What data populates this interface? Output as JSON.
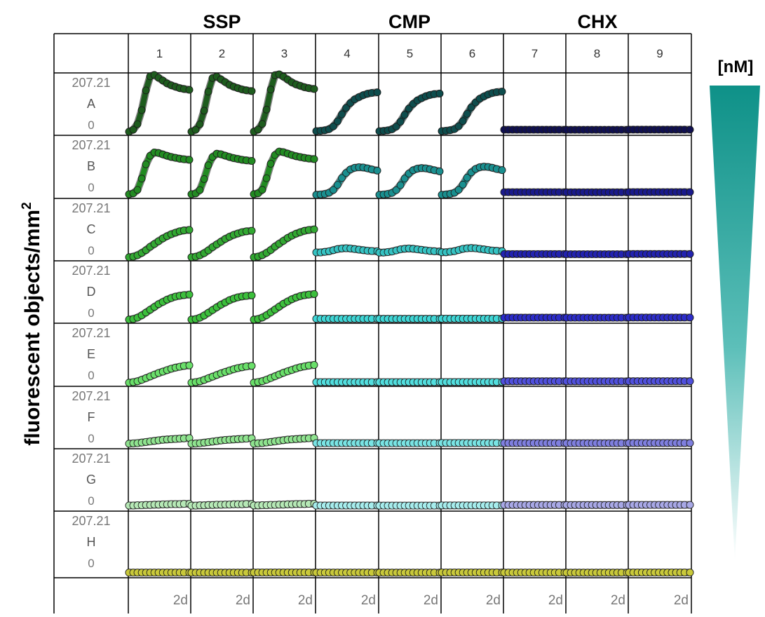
{
  "chart_data": {
    "type": "line",
    "title": "",
    "ylabel": "fluorescent objects/mm",
    "ylabel_superscript": "2",
    "groups": [
      {
        "label": "SSP",
        "columns": [
          1,
          2,
          3
        ]
      },
      {
        "label": "CMP",
        "columns": [
          4,
          5,
          6
        ]
      },
      {
        "label": "CHX",
        "columns": [
          7,
          8,
          9
        ]
      }
    ],
    "columns": [
      "1",
      "2",
      "3",
      "4",
      "5",
      "6",
      "7",
      "8",
      "9"
    ],
    "rows": [
      "A",
      "B",
      "C",
      "D",
      "E",
      "F",
      "G",
      "H"
    ],
    "y_max_label": "207.21",
    "y_min_label": "0",
    "ylim": [
      0,
      207.21
    ],
    "x_end_label": "2d",
    "concentration_label": "[nM]",
    "concentration_gradient": {
      "top_color": "#0e9188",
      "bottom_color": "#ffffff"
    },
    "grid": true,
    "row_colors": {
      "SSP": [
        "#1e5c1e",
        "#228b22",
        "#32a832",
        "#3cbf3c",
        "#6adf6a",
        "#8fe38f",
        "#b6e9b6",
        "#c9c93a"
      ],
      "CMP": [
        "#0e4d4d",
        "#1a8f8f",
        "#35c3c3",
        "#3fd6d6",
        "#52dede",
        "#79e4e4",
        "#a6eded",
        "#c9c93a"
      ],
      "CHX": [
        "#101050",
        "#1a1a8c",
        "#2222b0",
        "#2c2cc8",
        "#5050dc",
        "#7f7fdf",
        "#a8a8e6",
        "#c9c93a"
      ]
    },
    "x_time_fraction": [
      0,
      0.07,
      0.14,
      0.21,
      0.28,
      0.35,
      0.42,
      0.49,
      0.56,
      0.63,
      0.7,
      0.77,
      0.84,
      0.91,
      1.0
    ],
    "series": [
      {
        "row": "A",
        "group": "SSP",
        "values": [
          3,
          10,
          30,
          80,
          150,
          200,
          205,
          195,
          185,
          175,
          168,
          163,
          158,
          155,
          152
        ]
      },
      {
        "row": "A",
        "group": "CMP",
        "values": [
          5,
          6,
          8,
          12,
          22,
          40,
          65,
          88,
          105,
          118,
          126,
          133,
          138,
          141,
          143
        ]
      },
      {
        "row": "A",
        "group": "CHX",
        "values": [
          10,
          10,
          10,
          10,
          10,
          10,
          10,
          10,
          10,
          10,
          10,
          10,
          10,
          10,
          10
        ]
      },
      {
        "row": "B",
        "group": "SSP",
        "values": [
          5,
          8,
          20,
          60,
          110,
          140,
          152,
          150,
          145,
          140,
          136,
          133,
          130,
          128,
          126
        ]
      },
      {
        "row": "B",
        "group": "CMP",
        "values": [
          3,
          4,
          6,
          10,
          20,
          38,
          62,
          80,
          92,
          98,
          100,
          99,
          96,
          92,
          88
        ]
      },
      {
        "row": "B",
        "group": "CHX",
        "values": [
          12,
          12,
          12,
          12,
          12,
          12,
          12,
          12,
          12,
          12,
          12,
          12,
          12,
          12,
          12
        ]
      },
      {
        "row": "C",
        "group": "SSP",
        "values": [
          3,
          5,
          10,
          18,
          28,
          40,
          50,
          60,
          70,
          78,
          85,
          90,
          95,
          98,
          100
        ]
      },
      {
        "row": "C",
        "group": "CMP",
        "values": [
          20,
          20,
          22,
          24,
          28,
          32,
          34,
          35,
          34,
          32,
          30,
          28,
          26,
          25,
          24
        ]
      },
      {
        "row": "C",
        "group": "CHX",
        "values": [
          14,
          14,
          14,
          14,
          14,
          14,
          14,
          14,
          14,
          14,
          14,
          14,
          14,
          14,
          14
        ]
      },
      {
        "row": "D",
        "group": "SSP",
        "values": [
          3,
          5,
          10,
          18,
          28,
          38,
          48,
          58,
          66,
          74,
          80,
          85,
          88,
          90,
          92
        ]
      },
      {
        "row": "D",
        "group": "CMP",
        "values": [
          6,
          6,
          6,
          6,
          6,
          6,
          6,
          6,
          6,
          6,
          6,
          6,
          6,
          6,
          6
        ]
      },
      {
        "row": "D",
        "group": "CHX",
        "values": [
          10,
          10,
          10,
          10,
          10,
          10,
          10,
          10,
          10,
          10,
          10,
          10,
          10,
          10,
          10
        ]
      },
      {
        "row": "E",
        "group": "SSP",
        "values": [
          3,
          5,
          8,
          13,
          19,
          25,
          31,
          37,
          42,
          47,
          52,
          56,
          59,
          62,
          64
        ]
      },
      {
        "row": "E",
        "group": "CMP",
        "values": [
          5,
          5,
          5,
          5,
          5,
          5,
          5,
          5,
          5,
          5,
          5,
          5,
          5,
          5,
          5
        ]
      },
      {
        "row": "E",
        "group": "CHX",
        "values": [
          8,
          8,
          8,
          8,
          8,
          8,
          8,
          8,
          8,
          8,
          8,
          8,
          8,
          8,
          8
        ]
      },
      {
        "row": "F",
        "group": "SSP",
        "values": [
          8,
          9,
          10,
          12,
          14,
          16,
          18,
          20,
          22,
          23,
          24,
          25,
          26,
          27,
          28
        ]
      },
      {
        "row": "F",
        "group": "CMP",
        "values": [
          10,
          10,
          10,
          10,
          10,
          10,
          10,
          10,
          10,
          10,
          10,
          10,
          10,
          10,
          10
        ]
      },
      {
        "row": "F",
        "group": "CHX",
        "values": [
          10,
          10,
          10,
          10,
          10,
          10,
          10,
          10,
          10,
          10,
          10,
          10,
          10,
          10,
          10
        ]
      },
      {
        "row": "G",
        "group": "SSP",
        "values": [
          10,
          10,
          11,
          11,
          12,
          12,
          13,
          13,
          14,
          14,
          15,
          15,
          15,
          16,
          16
        ]
      },
      {
        "row": "G",
        "group": "CMP",
        "values": [
          10,
          10,
          10,
          10,
          10,
          10,
          10,
          10,
          10,
          10,
          10,
          10,
          10,
          10,
          10
        ]
      },
      {
        "row": "G",
        "group": "CHX",
        "values": [
          12,
          12,
          12,
          12,
          12,
          12,
          12,
          12,
          12,
          12,
          12,
          12,
          12,
          12,
          12
        ]
      },
      {
        "row": "H",
        "group": "SSP",
        "values": [
          8,
          8,
          8,
          8,
          8,
          8,
          8,
          8,
          8,
          8,
          8,
          8,
          8,
          8,
          8
        ]
      },
      {
        "row": "H",
        "group": "CMP",
        "values": [
          8,
          8,
          8,
          8,
          8,
          8,
          8,
          8,
          8,
          8,
          8,
          8,
          8,
          8,
          8
        ]
      },
      {
        "row": "H",
        "group": "CHX",
        "values": [
          8,
          8,
          8,
          8,
          8,
          8,
          8,
          8,
          8,
          8,
          8,
          8,
          8,
          8,
          8
        ]
      }
    ]
  }
}
